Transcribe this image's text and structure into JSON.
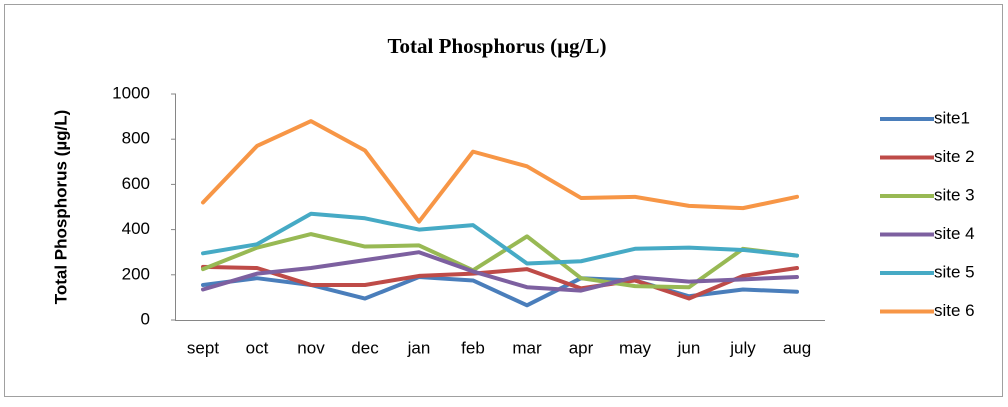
{
  "chart_data": {
    "type": "line",
    "title": "Total Phosphorus (µg/L)",
    "y_label": "Total Phosphorus (µg/L)",
    "categories": [
      "sept",
      "oct",
      "nov",
      "dec",
      "jan",
      "feb",
      "mar",
      "apr",
      "may",
      "jun",
      "july",
      "aug"
    ],
    "series": [
      {
        "name": "site1",
        "color": "#4a7ebb",
        "values": [
          155,
          185,
          155,
          95,
          190,
          175,
          65,
          185,
          175,
          105,
          135,
          125
        ]
      },
      {
        "name": "site 2",
        "color": "#be4b48",
        "values": [
          235,
          230,
          155,
          155,
          195,
          205,
          225,
          140,
          175,
          95,
          195,
          230
        ]
      },
      {
        "name": "site 3",
        "color": "#98b954",
        "values": [
          225,
          320,
          380,
          325,
          330,
          220,
          370,
          185,
          150,
          145,
          315,
          285
        ]
      },
      {
        "name": "site 4",
        "color": "#7d60a0",
        "values": [
          135,
          205,
          230,
          265,
          300,
          215,
          145,
          130,
          190,
          170,
          180,
          190
        ]
      },
      {
        "name": "site 5",
        "color": "#46aac5",
        "values": [
          295,
          335,
          470,
          450,
          400,
          420,
          250,
          260,
          315,
          320,
          310,
          285
        ]
      },
      {
        "name": "site 6",
        "color": "#f79646",
        "values": [
          520,
          770,
          880,
          750,
          435,
          745,
          680,
          540,
          545,
          505,
          495,
          545
        ]
      }
    ],
    "ylim": [
      0,
      1000
    ],
    "yticks": [
      0,
      200,
      400,
      600,
      800,
      1000
    ],
    "legend": "right",
    "grid": false
  }
}
